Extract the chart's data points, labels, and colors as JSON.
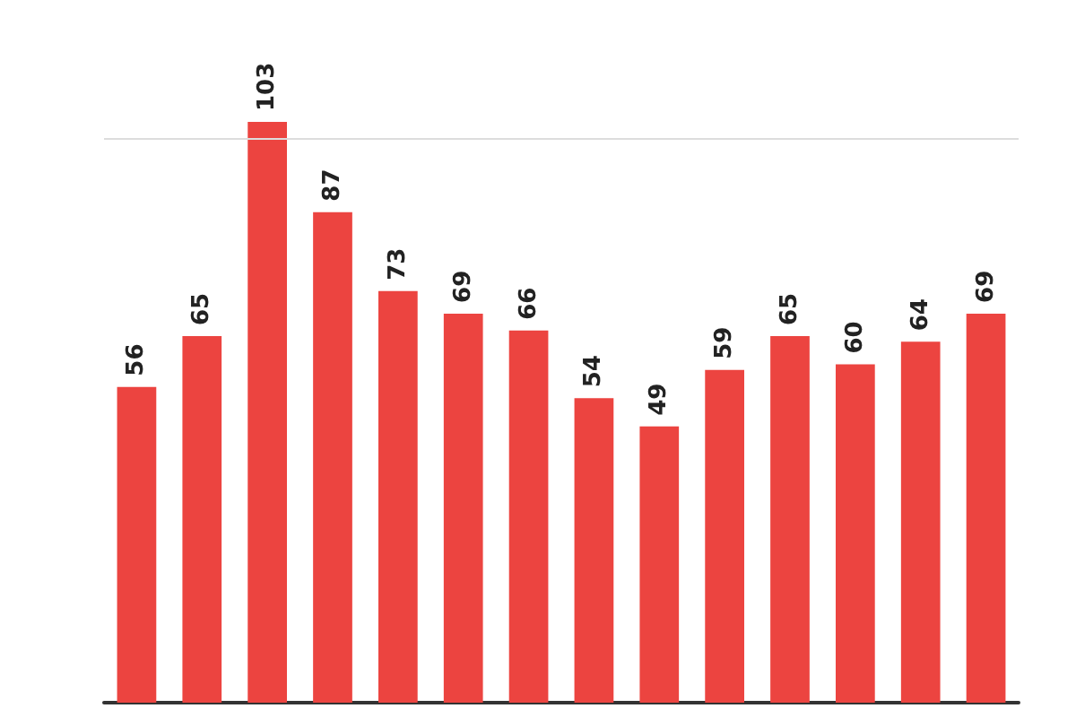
{
  "chart_data": {
    "type": "bar",
    "categories": [
      null,
      null,
      null,
      null,
      null,
      null,
      null,
      null,
      null,
      null,
      null,
      null,
      null,
      null
    ],
    "values": [
      56,
      65,
      103,
      87,
      73,
      69,
      66,
      54,
      49,
      59,
      65,
      60,
      64,
      69
    ],
    "color": "#ec4440",
    "data_labels": true,
    "ref_lines": [
      {
        "axis": "y",
        "value": 100,
        "label": null,
        "color": "#dddddd"
      }
    ]
  }
}
